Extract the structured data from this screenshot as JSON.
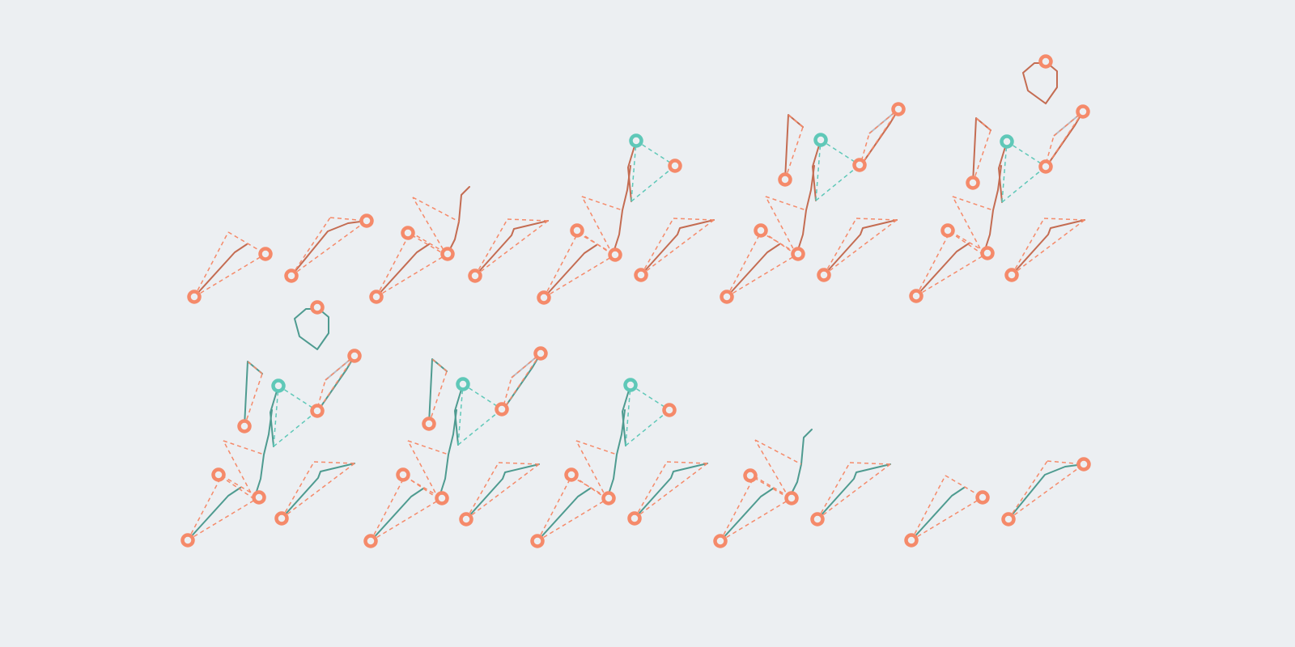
{
  "colors": {
    "background": "#eceff2",
    "body_top_row": "#c46c52",
    "body_bottom_row": "#4e9b90",
    "limb_link": "#f58a6a",
    "spine_link": "#5fc8b8",
    "joint": "#f58a6a",
    "spine_joint": "#5fc8b8",
    "ghost": "#b8bcc4"
  },
  "figure": {
    "rows": [
      {
        "name": "top-row",
        "frames": [
          {
            "name": "frame-1",
            "parts": [
              "rear-leg"
            ]
          },
          {
            "name": "frame-2",
            "parts": [
              "front-shin"
            ]
          },
          {
            "name": "frame-3",
            "parts": [
              "rear-leg",
              "front-leg",
              "torso-base"
            ]
          },
          {
            "name": "frame-4",
            "parts": [
              "rear-leg",
              "front-leg",
              "torso",
              "spine"
            ]
          },
          {
            "name": "frame-5",
            "parts": [
              "rear-leg",
              "front-leg",
              "torso",
              "spine",
              "back-arm",
              "front-arm"
            ]
          },
          {
            "name": "frame-6",
            "parts": [
              "rear-leg",
              "front-leg",
              "torso",
              "spine",
              "back-arm",
              "front-arm",
              "head"
            ]
          }
        ]
      },
      {
        "name": "bottom-row",
        "frames": [
          {
            "name": "frame-7",
            "parts": [
              "rear-leg",
              "front-leg",
              "torso",
              "spine",
              "back-arm",
              "front-arm",
              "head"
            ]
          },
          {
            "name": "frame-8",
            "parts": [
              "rear-leg",
              "front-leg",
              "torso",
              "spine",
              "back-arm",
              "front-arm"
            ]
          },
          {
            "name": "frame-9",
            "parts": [
              "rear-leg",
              "front-leg",
              "torso",
              "spine"
            ]
          },
          {
            "name": "frame-10",
            "parts": [
              "rear-leg",
              "front-leg",
              "torso-base"
            ]
          },
          {
            "name": "frame-11",
            "parts": [
              "rear-leg"
            ]
          },
          {
            "name": "frame-12",
            "parts": [
              "front-shin"
            ]
          }
        ]
      }
    ]
  }
}
